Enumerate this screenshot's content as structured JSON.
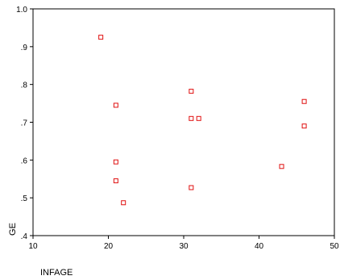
{
  "chart_data": {
    "type": "scatter",
    "title": "",
    "xlabel": "INFAGE",
    "ylabel": "GE",
    "xlim": [
      10,
      50
    ],
    "ylim": [
      0.4,
      1.0
    ],
    "x_ticks": [
      10,
      20,
      30,
      40,
      50
    ],
    "y_ticks": [
      0.4,
      0.5,
      0.6,
      0.7,
      0.8,
      0.9,
      1.0
    ],
    "x_tick_labels": [
      "10",
      "20",
      "30",
      "40",
      "50"
    ],
    "y_tick_labels": [
      ".4",
      ".5",
      ".6",
      ".7",
      ".8",
      ".9",
      "1.0"
    ],
    "grid": false,
    "marker": "hollow-square",
    "marker_color": "#e01010",
    "points": [
      {
        "x": 19,
        "y": 0.925
      },
      {
        "x": 21,
        "y": 0.745
      },
      {
        "x": 21,
        "y": 0.595
      },
      {
        "x": 21,
        "y": 0.545
      },
      {
        "x": 22,
        "y": 0.487
      },
      {
        "x": 31,
        "y": 0.782
      },
      {
        "x": 31,
        "y": 0.71
      },
      {
        "x": 32,
        "y": 0.71
      },
      {
        "x": 31,
        "y": 0.527
      },
      {
        "x": 43,
        "y": 0.583
      },
      {
        "x": 46,
        "y": 0.755
      },
      {
        "x": 46,
        "y": 0.69
      }
    ]
  }
}
